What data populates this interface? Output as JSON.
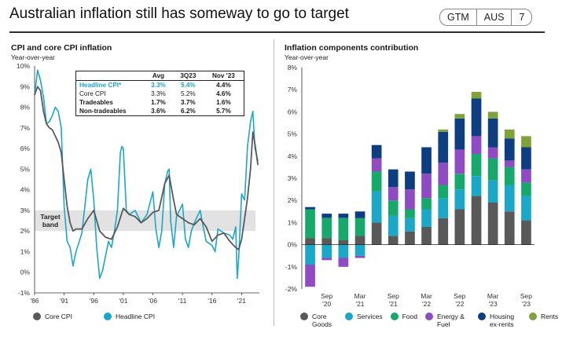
{
  "page": {
    "title": "Australian inflation still has someway to go to target",
    "badge": [
      "GTM",
      "AUS",
      "7"
    ]
  },
  "left_panel": {
    "title": "CPI and core CPI inflation",
    "subtitle": "Year-over-year",
    "table": {
      "headers": [
        "",
        "Avg",
        "3Q23",
        "Nov '23"
      ],
      "rows": [
        {
          "label": "Headline CPI*",
          "avg": "3.3%",
          "q": "5.4%",
          "nov": "4.4%"
        },
        {
          "label": "Core CPI",
          "avg": "3.3%",
          "q": "5.2%",
          "nov": "4.6%"
        },
        {
          "label": "Tradeables",
          "avg": "1.7%",
          "q": "3.7%",
          "nov": "1.6%"
        },
        {
          "label": "Non-tradeables",
          "avg": "3.6%",
          "q": "6.2%",
          "nov": "5.7%"
        }
      ]
    },
    "band_label_1": "Target",
    "band_label_2": "band",
    "legend": [
      "Core CPI",
      "Headline CPI"
    ]
  },
  "right_panel": {
    "title": "Inflation components contribution",
    "subtitle": "Year-over-year"
  },
  "colors": {
    "core_cpi": "#595959",
    "headline_cpi": "#1ba7c8",
    "target_band": "#e2e2e2",
    "core_goods": "#595959",
    "services": "#1ba7c8",
    "food": "#17a86c",
    "energy_fuel": "#8e4bc3",
    "housing": "#0d3e82",
    "rents": "#7fa23a"
  },
  "chart_data": [
    {
      "type": "line",
      "title": "CPI and core CPI inflation",
      "subtitle": "Year-over-year",
      "ylim": [
        -1,
        10
      ],
      "y_ticks": [
        -1,
        0,
        1,
        2,
        3,
        4,
        5,
        6,
        7,
        8,
        9,
        10
      ],
      "y_tick_labels": [
        "-1%",
        "0%",
        "1%",
        "2%",
        "3%",
        "4%",
        "5%",
        "6%",
        "7%",
        "8%",
        "9%",
        "10%"
      ],
      "xlim": [
        1986,
        2024
      ],
      "x_ticks": [
        1986,
        1991,
        1996,
        2001,
        2006,
        2011,
        2016,
        2021
      ],
      "x_tick_labels": [
        "'86",
        "'91",
        "'96",
        "'01",
        "'06",
        "'11",
        "'16",
        "'21"
      ],
      "target_band": [
        2,
        3
      ],
      "series": [
        {
          "name": "Core CPI",
          "x": [
            1986.0,
            1986.5,
            1987.0,
            1987.5,
            1988.0,
            1988.5,
            1989.0,
            1989.5,
            1990.0,
            1990.5,
            1991.0,
            1991.5,
            1992.0,
            1992.5,
            1993.0,
            1994.0,
            1995.0,
            1996.0,
            1997.0,
            1998.0,
            1999.0,
            2000.0,
            2001.0,
            2002.0,
            2003.0,
            2004.0,
            2005.0,
            2006.0,
            2007.0,
            2008.0,
            2008.75,
            2009.5,
            2010.0,
            2011.0,
            2012.0,
            2013.0,
            2014.0,
            2015.0,
            2016.0,
            2017.0,
            2018.0,
            2019.0,
            2020.0,
            2020.5,
            2021.0,
            2021.5,
            2022.0,
            2022.5,
            2022.9,
            2023.25,
            2023.75
          ],
          "y": [
            8.6,
            9.0,
            8.8,
            7.8,
            7.2,
            7.0,
            6.9,
            6.6,
            6.3,
            5.8,
            4.5,
            3.2,
            2.4,
            2.0,
            2.1,
            2.1,
            2.6,
            3.0,
            2.0,
            1.7,
            1.6,
            2.2,
            3.1,
            2.8,
            2.7,
            2.4,
            2.6,
            2.9,
            3.0,
            4.3,
            4.7,
            3.5,
            2.8,
            2.6,
            2.4,
            2.3,
            2.6,
            2.2,
            1.5,
            1.8,
            1.9,
            1.5,
            1.2,
            1.1,
            1.6,
            2.6,
            3.6,
            5.0,
            6.8,
            6.2,
            5.2
          ]
        },
        {
          "name": "Headline CPI",
          "x": [
            1986.0,
            1986.5,
            1987.0,
            1987.5,
            1988.0,
            1988.5,
            1989.0,
            1989.5,
            1990.0,
            1990.5,
            1991.0,
            1991.5,
            1992.0,
            1992.5,
            1993.0,
            1994.0,
            1995.0,
            1995.5,
            1996.0,
            1996.5,
            1997.0,
            1997.5,
            1998.0,
            1998.5,
            1999.0,
            1999.5,
            2000.0,
            2000.5,
            2000.75,
            2001.0,
            2001.5,
            2002.0,
            2003.0,
            2004.0,
            2005.0,
            2006.0,
            2006.5,
            2007.0,
            2007.5,
            2008.0,
            2008.5,
            2008.75,
            2009.0,
            2009.5,
            2010.0,
            2011.0,
            2011.5,
            2012.0,
            2012.5,
            2013.0,
            2014.0,
            2014.5,
            2015.0,
            2016.0,
            2016.5,
            2017.0,
            2018.0,
            2019.0,
            2019.5,
            2020.0,
            2020.25,
            2020.5,
            2021.0,
            2021.5,
            2022.0,
            2022.5,
            2022.9,
            2023.25,
            2023.75
          ],
          "y": [
            8.6,
            9.8,
            9.3,
            8.5,
            7.2,
            7.3,
            7.6,
            8.0,
            7.8,
            7.0,
            3.2,
            1.5,
            1.2,
            0.3,
            1.0,
            1.9,
            4.5,
            5.0,
            3.5,
            1.2,
            -0.3,
            0.1,
            0.8,
            1.5,
            1.2,
            2.0,
            3.0,
            5.8,
            6.1,
            6.0,
            3.0,
            2.8,
            3.0,
            2.4,
            2.8,
            3.9,
            2.1,
            1.2,
            2.0,
            4.3,
            4.9,
            5.0,
            2.5,
            1.2,
            2.7,
            3.3,
            1.6,
            1.2,
            2.0,
            2.4,
            3.0,
            2.2,
            1.5,
            1.3,
            1.0,
            2.1,
            1.9,
            1.8,
            1.6,
            2.2,
            -0.3,
            0.7,
            3.8,
            3.5,
            6.1,
            7.3,
            7.8,
            6.0,
            5.4
          ]
        }
      ]
    },
    {
      "type": "bar",
      "title": "Inflation components contribution",
      "subtitle": "Year-over-year",
      "stacked": true,
      "ylim": [
        -2,
        8
      ],
      "y_ticks": [
        -2,
        -1,
        0,
        1,
        2,
        3,
        4,
        5,
        6,
        7,
        8
      ],
      "y_tick_labels": [
        "-2%",
        "-1%",
        "0%",
        "1%",
        "2%",
        "3%",
        "4%",
        "5%",
        "6%",
        "7%",
        "8%"
      ],
      "x_tick_labels": [
        {
          "bar": 1,
          "line1": "Sep",
          "line2": "'20"
        },
        {
          "bar": 3,
          "line1": "Mar",
          "line2": "'21"
        },
        {
          "bar": 5,
          "line1": "Sep",
          "line2": "'21"
        },
        {
          "bar": 7,
          "line1": "Mar",
          "line2": "'22"
        },
        {
          "bar": 9,
          "line1": "Sep",
          "line2": "'22"
        },
        {
          "bar": 11,
          "line1": "Mar",
          "line2": "'23"
        },
        {
          "bar": 13,
          "line1": "Sep",
          "line2": "'23"
        }
      ],
      "series": [
        {
          "name": "Core Goods",
          "color_key": "core_goods",
          "values": [
            0.3,
            0.3,
            0.2,
            0.4,
            1.0,
            0.4,
            0.6,
            0.8,
            1.2,
            1.6,
            2.2,
            1.9,
            1.5,
            1.1
          ]
        },
        {
          "name": "Services",
          "color_key": "services",
          "values": [
            -0.9,
            -0.6,
            -0.6,
            -0.5,
            1.4,
            0.9,
            0.6,
            0.8,
            0.9,
            0.9,
            0.9,
            1.0,
            1.2,
            1.1
          ]
        },
        {
          "name": "Food",
          "color_key": "food",
          "values": [
            1.3,
            0.9,
            1.0,
            0.8,
            0.9,
            0.7,
            0.4,
            0.5,
            0.6,
            0.7,
            1.0,
            1.0,
            0.8,
            0.6
          ]
        },
        {
          "name": "Energy & Fuel",
          "color_key": "energy_fuel",
          "values": [
            -1.0,
            -0.1,
            -0.4,
            -0.1,
            0.6,
            0.6,
            0.9,
            1.1,
            1.0,
            1.1,
            0.8,
            0.5,
            0.3,
            0.6
          ]
        },
        {
          "name": "Housing ex-rents",
          "color_key": "housing",
          "values": [
            0.1,
            0.2,
            0.2,
            0.3,
            0.6,
            0.8,
            0.8,
            1.2,
            1.4,
            1.4,
            1.7,
            1.3,
            1.0,
            1.0
          ]
        },
        {
          "name": "Rents",
          "color_key": "rents",
          "values": [
            0.0,
            0.0,
            0.0,
            0.0,
            0.0,
            0.0,
            0.0,
            0.0,
            0.1,
            0.2,
            0.3,
            0.3,
            0.4,
            0.5
          ]
        }
      ]
    }
  ]
}
